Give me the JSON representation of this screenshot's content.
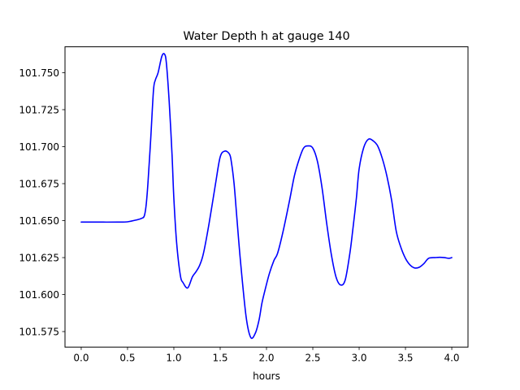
{
  "chart_data": {
    "type": "line",
    "title": "Water Depth h at gauge 140",
    "xlabel": "hours",
    "ylabel": "",
    "xlim": [
      -0.175,
      4.175
    ],
    "ylim": [
      101.5645,
      101.7675
    ],
    "xticks": [
      0.0,
      0.5,
      1.0,
      1.5,
      2.0,
      2.5,
      3.0,
      3.5,
      4.0
    ],
    "xtick_labels": [
      "0.0",
      "0.5",
      "1.0",
      "1.5",
      "2.0",
      "2.5",
      "3.0",
      "3.5",
      "4.0"
    ],
    "yticks": [
      101.575,
      101.6,
      101.625,
      101.65,
      101.675,
      101.7,
      101.725,
      101.75
    ],
    "ytick_labels": [
      "101.575",
      "101.600",
      "101.625",
      "101.650",
      "101.675",
      "101.700",
      "101.725",
      "101.750"
    ],
    "grid": false,
    "legend": "none",
    "colors": {
      "line": "#0000ff",
      "axes": "#000000",
      "background": "#ffffff"
    },
    "series": [
      {
        "x": [
          0.0,
          0.2,
          0.4,
          0.5,
          0.6,
          0.65,
          0.68,
          0.7,
          0.72,
          0.75,
          0.78,
          0.8,
          0.83,
          0.87,
          0.9,
          0.92,
          0.95,
          0.98,
          1.0,
          1.03,
          1.07,
          1.1,
          1.15,
          1.2,
          1.24,
          1.28,
          1.32,
          1.38,
          1.45,
          1.5,
          1.55,
          1.6,
          1.62,
          1.65,
          1.68,
          1.72,
          1.78,
          1.83,
          1.88,
          1.92,
          1.95,
          1.98,
          2.03,
          2.08,
          2.12,
          2.18,
          2.25,
          2.3,
          2.35,
          2.4,
          2.45,
          2.5,
          2.55,
          2.6,
          2.65,
          2.7,
          2.75,
          2.8,
          2.85,
          2.9,
          2.93,
          2.97,
          3.0,
          3.05,
          3.1,
          3.15,
          3.2,
          3.25,
          3.3,
          3.35,
          3.4,
          3.45,
          3.5,
          3.55,
          3.6,
          3.65,
          3.7,
          3.75,
          3.82,
          3.87,
          3.92,
          3.97,
          4.0
        ],
        "y": [
          101.649,
          101.649,
          101.649,
          101.6492,
          101.6505,
          101.6515,
          101.653,
          101.66,
          101.675,
          101.705,
          101.738,
          101.745,
          101.75,
          101.761,
          101.7625,
          101.756,
          101.73,
          101.695,
          101.665,
          101.635,
          101.613,
          101.608,
          101.6045,
          101.612,
          101.6155,
          101.62,
          101.628,
          101.648,
          101.675,
          101.693,
          101.697,
          101.695,
          101.69,
          101.675,
          101.652,
          101.622,
          101.585,
          101.571,
          101.574,
          101.583,
          101.594,
          101.602,
          101.614,
          101.623,
          101.628,
          101.643,
          101.664,
          101.68,
          101.691,
          101.699,
          101.7005,
          101.699,
          101.69,
          101.672,
          101.648,
          101.627,
          101.612,
          101.6065,
          101.61,
          101.628,
          101.643,
          101.665,
          101.685,
          101.6995,
          101.705,
          101.704,
          101.7005,
          101.692,
          101.68,
          101.664,
          101.643,
          101.632,
          101.6245,
          101.62,
          101.618,
          101.6185,
          101.621,
          101.6245,
          101.625,
          101.6252,
          101.625,
          101.6245,
          101.625
        ]
      }
    ]
  }
}
